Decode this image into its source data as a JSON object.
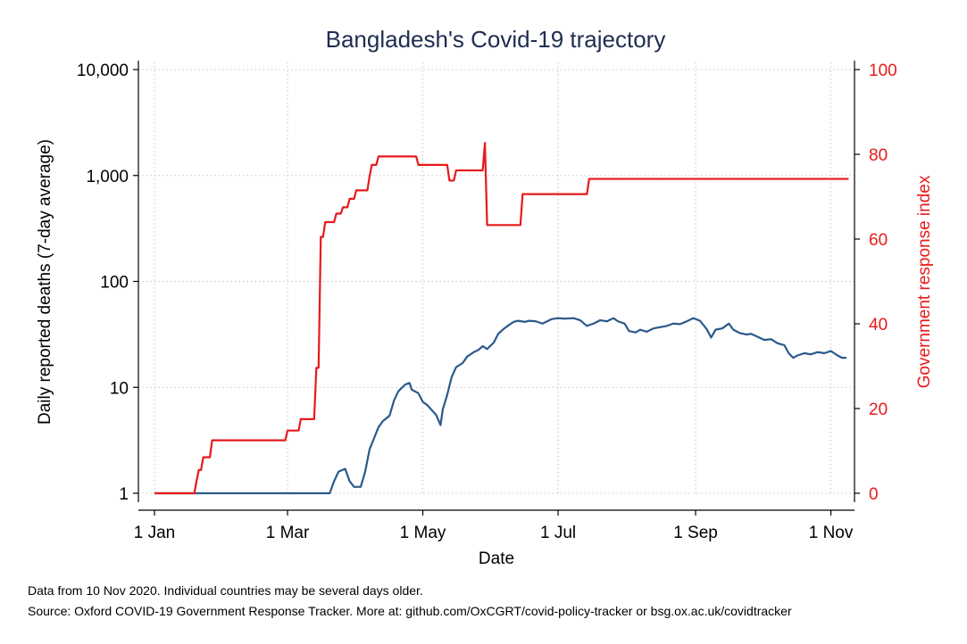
{
  "chart_data": {
    "type": "line",
    "title": "Bangladesh's Covid-19 trajectory",
    "xlabel": "Date",
    "ylabel": "Daily reported deaths (7-day average)",
    "y2label": "Government response index",
    "x_ticks": [
      {
        "label": "1 Jan",
        "day": 1
      },
      {
        "label": "1 Mar",
        "day": 61
      },
      {
        "label": "1 May",
        "day": 122
      },
      {
        "label": "1 Jul",
        "day": 183
      },
      {
        "label": "1 Sep",
        "day": 245
      },
      {
        "label": "1 Nov",
        "day": 306
      }
    ],
    "x_range": [
      1,
      315
    ],
    "y_scale": "log",
    "y_range": [
      1,
      10000
    ],
    "y_ticks": [
      {
        "label": "1",
        "value": 1
      },
      {
        "label": "10",
        "value": 10
      },
      {
        "label": "100",
        "value": 100
      },
      {
        "label": "1,000",
        "value": 1000
      },
      {
        "label": "10,000",
        "value": 10000
      }
    ],
    "y2_range": [
      0,
      100
    ],
    "y2_ticks": [
      {
        "label": "0",
        "value": 0
      },
      {
        "label": "20",
        "value": 20
      },
      {
        "label": "40",
        "value": 40
      },
      {
        "label": "60",
        "value": 60
      },
      {
        "label": "80",
        "value": 80
      },
      {
        "label": "100",
        "value": 100
      }
    ],
    "grid": true,
    "series": [
      {
        "axis": "left",
        "color": "#2a5a8a",
        "points": [
          [
            1,
            1
          ],
          [
            80,
            1
          ],
          [
            82,
            1.3
          ],
          [
            84,
            1.6
          ],
          [
            87,
            1.7
          ],
          [
            89,
            1.3
          ],
          [
            91,
            1.15
          ],
          [
            94,
            1.15
          ],
          [
            96,
            1.6
          ],
          [
            98,
            2.6
          ],
          [
            100,
            3.3
          ],
          [
            102,
            4.2
          ],
          [
            104,
            4.8
          ],
          [
            107,
            5.4
          ],
          [
            109,
            7.5
          ],
          [
            111,
            9.2
          ],
          [
            114,
            10.6
          ],
          [
            116,
            11
          ],
          [
            117,
            9.5
          ],
          [
            120,
            8.8
          ],
          [
            122,
            7.3
          ],
          [
            124,
            6.8
          ],
          [
            126,
            6.1
          ],
          [
            128,
            5.5
          ],
          [
            130,
            4.4
          ],
          [
            131,
            6.2
          ],
          [
            133,
            8.5
          ],
          [
            135,
            12.5
          ],
          [
            137,
            15.5
          ],
          [
            140,
            17
          ],
          [
            142,
            19.5
          ],
          [
            145,
            21.5
          ],
          [
            147,
            22.5
          ],
          [
            149,
            24.5
          ],
          [
            151,
            23
          ],
          [
            154,
            26.5
          ],
          [
            156,
            32
          ],
          [
            158,
            35
          ],
          [
            161,
            39
          ],
          [
            163,
            41.5
          ],
          [
            165,
            42.5
          ],
          [
            168,
            41.5
          ],
          [
            170,
            42.5
          ],
          [
            173,
            42
          ],
          [
            176,
            40
          ],
          [
            180,
            44
          ],
          [
            183,
            45
          ],
          [
            186,
            44.5
          ],
          [
            190,
            45
          ],
          [
            193,
            43
          ],
          [
            196,
            38
          ],
          [
            199,
            40
          ],
          [
            202,
            43
          ],
          [
            205,
            42
          ],
          [
            208,
            45
          ],
          [
            210,
            42
          ],
          [
            213,
            40
          ],
          [
            215,
            34
          ],
          [
            218,
            33
          ],
          [
            220,
            35
          ],
          [
            223,
            33.5
          ],
          [
            226,
            36
          ],
          [
            229,
            37
          ],
          [
            232,
            38
          ],
          [
            235,
            40
          ],
          [
            238,
            39.5
          ],
          [
            241,
            42
          ],
          [
            244,
            45
          ],
          [
            247,
            42.5
          ],
          [
            250,
            35.5
          ],
          [
            252,
            29.5
          ],
          [
            254,
            35
          ],
          [
            257,
            36
          ],
          [
            260,
            40
          ],
          [
            262,
            35
          ],
          [
            265,
            32.5
          ],
          [
            268,
            31.5
          ],
          [
            270,
            32
          ],
          [
            273,
            30
          ],
          [
            276,
            28
          ],
          [
            279,
            28.5
          ],
          [
            282,
            26
          ],
          [
            285,
            25
          ],
          [
            287,
            21
          ],
          [
            289,
            19
          ],
          [
            291,
            20
          ],
          [
            294,
            21
          ],
          [
            297,
            20.5
          ],
          [
            300,
            21.5
          ],
          [
            303,
            21
          ],
          [
            306,
            22
          ],
          [
            309,
            20
          ],
          [
            311,
            19
          ],
          [
            313,
            19
          ]
        ]
      },
      {
        "axis": "right",
        "color": "#e8191a",
        "points": [
          [
            1,
            0
          ],
          [
            19,
            0
          ],
          [
            20,
            3
          ],
          [
            21,
            5.5
          ],
          [
            22,
            5.5
          ],
          [
            23,
            8.5
          ],
          [
            26,
            8.5
          ],
          [
            27,
            12.5
          ],
          [
            60,
            12.5
          ],
          [
            61,
            14.8
          ],
          [
            66,
            14.8
          ],
          [
            67,
            17.5
          ],
          [
            73,
            17.5
          ],
          [
            74,
            29.6
          ],
          [
            75,
            29.6
          ],
          [
            76,
            60.5
          ],
          [
            77,
            60.5
          ],
          [
            78,
            64
          ],
          [
            79,
            64
          ],
          [
            80,
            64
          ],
          [
            81,
            64
          ],
          [
            82,
            64
          ],
          [
            83,
            66
          ],
          [
            85,
            66
          ],
          [
            86,
            67.5
          ],
          [
            88,
            67.5
          ],
          [
            89,
            69.5
          ],
          [
            91,
            69.5
          ],
          [
            92,
            71.5
          ],
          [
            97,
            71.5
          ],
          [
            98,
            74.8
          ],
          [
            99,
            77.5
          ],
          [
            101,
            77.5
          ],
          [
            102,
            79.5
          ],
          [
            119,
            79.5
          ],
          [
            120,
            77.5
          ],
          [
            133,
            77.5
          ],
          [
            134,
            73.8
          ],
          [
            136,
            73.8
          ],
          [
            137,
            76.2
          ],
          [
            149,
            76.2
          ],
          [
            150,
            82.7
          ],
          [
            151,
            63.3
          ],
          [
            166,
            63.3
          ],
          [
            167,
            70.6
          ],
          [
            196,
            70.6
          ],
          [
            197,
            74.2
          ],
          [
            314,
            74.2
          ]
        ]
      }
    ],
    "notes": [
      "Data from 10 Nov 2020. Individual countries may be several days older.",
      "Source: Oxford COVID-19 Government Response Tracker. More at: github.com/OxCGRT/covid-policy-tracker or bsg.ox.ac.uk/covidtracker"
    ]
  }
}
